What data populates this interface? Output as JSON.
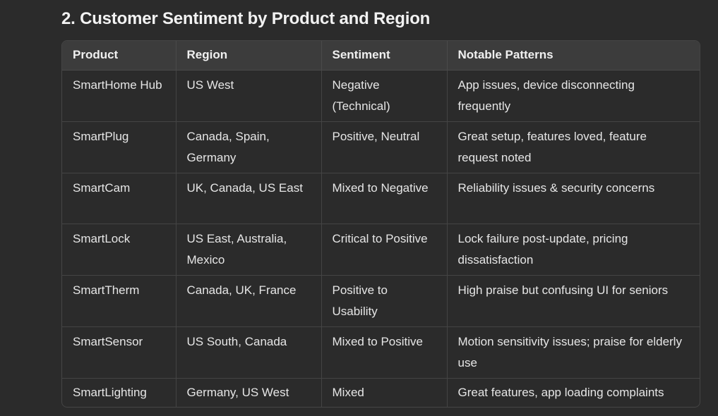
{
  "heading": "2. Customer Sentiment by Product and Region",
  "table": {
    "headers": [
      "Product",
      "Region",
      "Sentiment",
      "Notable Patterns"
    ],
    "rows": [
      [
        "SmartHome Hub",
        "US West",
        "Negative (Technical)",
        "App issues, device disconnecting frequently"
      ],
      [
        "SmartPlug",
        "Canada, Spain, Germany",
        "Positive, Neutral",
        "Great setup, features loved, feature request noted"
      ],
      [
        "SmartCam",
        "UK, Canada, US East",
        "Mixed to Negative",
        "Reliability issues & security concerns"
      ],
      [
        "SmartLock",
        "US East, Australia, Mexico",
        "Critical to Positive",
        "Lock failure post-update, pricing dissatisfaction"
      ],
      [
        "SmartTherm",
        "Canada, UK, France",
        "Positive to Usability",
        "High praise but confusing UI for seniors"
      ],
      [
        "SmartSensor",
        "US South, Canada",
        "Mixed to Positive",
        "Motion sensitivity issues; praise for elderly use"
      ],
      [
        "SmartLighting",
        "Germany, US West",
        "Mixed",
        "Great features, app loading complaints"
      ]
    ]
  }
}
